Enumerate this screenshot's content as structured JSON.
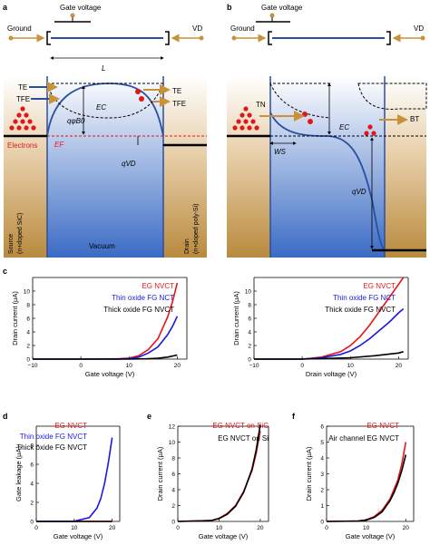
{
  "panels": {
    "a": {
      "letter": "a",
      "gate_label": "Gate voltage",
      "ground_label": "Ground",
      "vd_label": "VD",
      "length_label": "L",
      "te_left": "TE",
      "tfe_left": "TFE",
      "te_right": "TE",
      "tfe_right": "TFE",
      "ec_label": "EC",
      "barrier_label": "qφB0",
      "electrons_label": "Electrons",
      "ef_label": "EF",
      "qvd_label": "qVD",
      "source_label": "Source",
      "source_sub": "(n+doped SiC)",
      "vacuum_label": "Vacuum",
      "drain_label": "Drain",
      "drain_sub": "(n+doped poly-Si)"
    },
    "b": {
      "letter": "b",
      "gate_label": "Gate voltage",
      "ground_label": "Ground",
      "vd_label": "VD",
      "tn_label": "TN",
      "ec_label": "EC",
      "bt_label": "BT",
      "ws_label": "WS",
      "qvd_label": "qVD"
    }
  },
  "colors": {
    "accent_blue": "#2a4fa0",
    "arrow_tan": "#c8923a",
    "electron_red": "#e01818",
    "eg_red": "#e8141c",
    "thin_blue": "#1818e0",
    "thick_black": "#000000"
  },
  "chart_data": [
    {
      "id": "c-left",
      "letter": "c",
      "type": "line",
      "xlabel": "Gate voltage (V)",
      "ylabel": "Drain current (μA)",
      "xlim": [
        -10,
        22
      ],
      "ylim": [
        0,
        12
      ],
      "xticks": [
        -10,
        0,
        10,
        20
      ],
      "yticks": [
        0,
        2,
        4,
        6,
        8,
        10
      ],
      "series": [
        {
          "name": "EG NVCT",
          "color": "#e8141c",
          "x": [
            -10,
            0,
            8,
            10,
            12,
            14,
            16,
            18,
            19,
            20
          ],
          "y": [
            0,
            0,
            0.05,
            0.15,
            0.5,
            1.4,
            3.0,
            6.2,
            8.4,
            11.2
          ]
        },
        {
          "name": "Thin oxide FG NCT",
          "color": "#1818e0",
          "x": [
            -10,
            0,
            8,
            10,
            12,
            14,
            16,
            18,
            19,
            20
          ],
          "y": [
            0,
            0,
            0.02,
            0.08,
            0.3,
            0.9,
            1.8,
            3.6,
            4.8,
            6.3
          ]
        },
        {
          "name": "Thick oxide FG NVCT",
          "color": "#000000",
          "x": [
            -10,
            0,
            10,
            14,
            16,
            18,
            20
          ],
          "y": [
            0,
            0,
            0,
            0.05,
            0.12,
            0.3,
            0.6
          ]
        }
      ]
    },
    {
      "id": "c-right",
      "letter": "",
      "type": "line",
      "xlabel": "Drain voltage (V)",
      "ylabel": "Drain current (μA)",
      "xlim": [
        -10,
        22
      ],
      "ylim": [
        0,
        12
      ],
      "xticks": [
        -10,
        0,
        10,
        20
      ],
      "yticks": [
        0,
        2,
        4,
        6,
        8,
        10
      ],
      "series": [
        {
          "name": "EG NVCT",
          "color": "#e8141c",
          "x": [
            -10,
            0,
            4,
            8,
            10,
            12,
            14,
            16,
            18,
            20,
            21
          ],
          "y": [
            0,
            0,
            0.3,
            1.1,
            2.0,
            3.3,
            5.0,
            7.0,
            9.0,
            11.0,
            12.0
          ]
        },
        {
          "name": "Thin oxide FG NCT",
          "color": "#1818e0",
          "x": [
            -10,
            0,
            4,
            8,
            10,
            12,
            14,
            16,
            18,
            20,
            21
          ],
          "y": [
            0,
            0,
            0.2,
            0.7,
            1.2,
            2.0,
            3.0,
            4.2,
            5.4,
            6.8,
            7.4
          ]
        },
        {
          "name": "Thick oxide FG NVCT",
          "color": "#000000",
          "x": [
            -10,
            0,
            10,
            15,
            20,
            21
          ],
          "y": [
            0,
            0,
            0.2,
            0.5,
            0.9,
            1.1
          ]
        }
      ]
    },
    {
      "id": "d",
      "letter": "d",
      "type": "line",
      "xlabel": "Gate voltage (V)",
      "ylabel": "Gate leakage (μA)",
      "xlim": [
        0,
        22
      ],
      "ylim": [
        0,
        10
      ],
      "xticks": [
        0,
        10,
        20
      ],
      "yticks": [
        0,
        2,
        4,
        6,
        8
      ],
      "series": [
        {
          "name": "EG NVCT",
          "color": "#e8141c",
          "x": [
            0,
            10,
            20
          ],
          "y": [
            0,
            0,
            0
          ]
        },
        {
          "name": "Thin oxide FG NVCT",
          "color": "#1818e0",
          "x": [
            0,
            10,
            14,
            16,
            17,
            18,
            19,
            20
          ],
          "y": [
            0,
            0.02,
            0.4,
            1.4,
            2.4,
            4.0,
            6.2,
            8.8
          ]
        },
        {
          "name": "Thick oxide FG NVCT",
          "color": "#000000",
          "x": [
            0,
            10,
            20
          ],
          "y": [
            0,
            0,
            0
          ]
        }
      ]
    },
    {
      "id": "e",
      "letter": "e",
      "type": "line",
      "xlabel": "Gate voltage (V)",
      "ylabel": "Drain current (μA)",
      "xlim": [
        0,
        22
      ],
      "ylim": [
        0,
        12
      ],
      "xticks": [
        0,
        10,
        20
      ],
      "yticks": [
        0,
        2,
        4,
        6,
        8,
        10,
        12
      ],
      "series": [
        {
          "name": "EG NVCT on SiC",
          "color": "#e8141c",
          "x": [
            0,
            8,
            10,
            12,
            14,
            16,
            18,
            19,
            20
          ],
          "y": [
            0,
            0.1,
            0.4,
            1.0,
            2.0,
            3.8,
            6.4,
            8.6,
            11.4
          ]
        },
        {
          "name": "EG NVCT on Si",
          "color": "#000000",
          "x": [
            0,
            8,
            10,
            12,
            14,
            16,
            18,
            19,
            20
          ],
          "y": [
            0,
            0.1,
            0.35,
            0.9,
            1.9,
            3.7,
            6.6,
            9.0,
            12.2
          ]
        }
      ]
    },
    {
      "id": "f",
      "letter": "f",
      "type": "line",
      "xlabel": "Gate voltage (V)",
      "ylabel": "Drain current (μA)",
      "xlim": [
        0,
        22
      ],
      "ylim": [
        0,
        6
      ],
      "xticks": [
        0,
        10,
        20
      ],
      "yticks": [
        0,
        1,
        2,
        3,
        4,
        5,
        6
      ],
      "series": [
        {
          "name": "EG NVCT",
          "color": "#e8141c",
          "x": [
            0,
            8,
            10,
            12,
            14,
            16,
            18,
            19,
            20
          ],
          "y": [
            0,
            0.02,
            0.1,
            0.3,
            0.7,
            1.4,
            2.6,
            3.6,
            5.0
          ]
        },
        {
          "name": "Air channel EG NVCT",
          "color": "#000000",
          "x": [
            0,
            8,
            10,
            12,
            14,
            16,
            17,
            18,
            19,
            20
          ],
          "y": [
            0,
            0.02,
            0.08,
            0.25,
            0.6,
            1.3,
            1.8,
            2.4,
            3.2,
            4.2
          ]
        }
      ]
    }
  ]
}
